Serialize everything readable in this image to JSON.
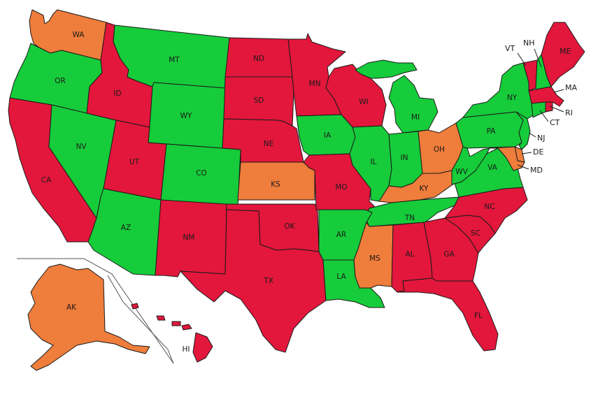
{
  "colors": {
    "red": "#e2173b",
    "green": "#16cc3a",
    "orange": "#ef7d3b",
    "border": "#1a1a1a"
  },
  "states": {
    "WA": {
      "label": "WA",
      "status": "orange"
    },
    "OR": {
      "label": "OR",
      "status": "green"
    },
    "CA": {
      "label": "CA",
      "status": "red"
    },
    "ID": {
      "label": "ID",
      "status": "red"
    },
    "NV": {
      "label": "NV",
      "status": "green"
    },
    "MT": {
      "label": "MT",
      "status": "green"
    },
    "WY": {
      "label": "WY",
      "status": "green"
    },
    "UT": {
      "label": "UT",
      "status": "red"
    },
    "AZ": {
      "label": "AZ",
      "status": "green"
    },
    "CO": {
      "label": "CO",
      "status": "green"
    },
    "NM": {
      "label": "NM",
      "status": "red"
    },
    "ND": {
      "label": "ND",
      "status": "red"
    },
    "SD": {
      "label": "SD",
      "status": "red"
    },
    "NE": {
      "label": "NE",
      "status": "red"
    },
    "KS": {
      "label": "KS",
      "status": "orange"
    },
    "OK": {
      "label": "OK",
      "status": "red"
    },
    "TX": {
      "label": "TX",
      "status": "red"
    },
    "MN": {
      "label": "MN",
      "status": "red"
    },
    "IA": {
      "label": "IA",
      "status": "green"
    },
    "MO": {
      "label": "MO",
      "status": "red"
    },
    "AR": {
      "label": "AR",
      "status": "green"
    },
    "LA": {
      "label": "LA",
      "status": "green"
    },
    "WI": {
      "label": "WI",
      "status": "red"
    },
    "IL": {
      "label": "IL",
      "status": "green"
    },
    "MI": {
      "label": "MI",
      "status": "green"
    },
    "IN": {
      "label": "IN",
      "status": "green"
    },
    "OH": {
      "label": "OH",
      "status": "orange"
    },
    "KY": {
      "label": "KY",
      "status": "orange"
    },
    "TN": {
      "label": "TN",
      "status": "green"
    },
    "MS": {
      "label": "MS",
      "status": "orange"
    },
    "AL": {
      "label": "AL",
      "status": "red"
    },
    "GA": {
      "label": "GA",
      "status": "red"
    },
    "FL": {
      "label": "FL",
      "status": "red"
    },
    "SC": {
      "label": "SC",
      "status": "red"
    },
    "NC": {
      "label": "NC",
      "status": "red"
    },
    "VA": {
      "label": "VA",
      "status": "green"
    },
    "WV": {
      "label": "WV",
      "status": "green"
    },
    "PA": {
      "label": "PA",
      "status": "green"
    },
    "NY": {
      "label": "NY",
      "status": "green"
    },
    "VT": {
      "label": "VT",
      "status": "red"
    },
    "NH": {
      "label": "NH",
      "status": "green"
    },
    "ME": {
      "label": "ME",
      "status": "red"
    },
    "MA": {
      "label": "MA",
      "status": "red"
    },
    "RI": {
      "label": "RI",
      "status": "red"
    },
    "CT": {
      "label": "CT",
      "status": "green"
    },
    "NJ": {
      "label": "NJ",
      "status": "green"
    },
    "DE": {
      "label": "DE",
      "status": "orange"
    },
    "MD": {
      "label": "MD",
      "status": "orange"
    },
    "AK": {
      "label": "AK",
      "status": "orange"
    },
    "HI": {
      "label": "HI",
      "status": "red"
    }
  }
}
